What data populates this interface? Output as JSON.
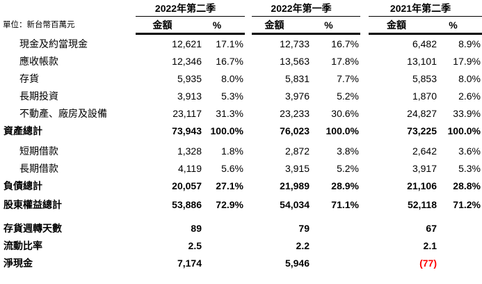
{
  "unit_note": "單位：新台幣百萬元",
  "columns": {
    "amount": "金額",
    "percent": "%"
  },
  "periods": [
    "2022年第二季",
    "2022年第一季",
    "2021年第二季"
  ],
  "colors": {
    "text": "#000000",
    "negative": "#ff0000",
    "rule": "#000000"
  },
  "rows": [
    {
      "label": "現金及約當現金",
      "bold": false,
      "gap_before": 0,
      "values": [
        "12,621",
        "17.1%",
        "12,733",
        "16.7%",
        "6,482",
        "8.9%"
      ]
    },
    {
      "label": "應收帳款",
      "bold": false,
      "gap_before": 0,
      "values": [
        "12,346",
        "16.7%",
        "13,563",
        "17.8%",
        "13,101",
        "17.9%"
      ]
    },
    {
      "label": "存貨",
      "bold": false,
      "gap_before": 0,
      "values": [
        "5,935",
        "8.0%",
        "5,831",
        "7.7%",
        "5,853",
        "8.0%"
      ]
    },
    {
      "label": "長期投資",
      "bold": false,
      "gap_before": 0,
      "values": [
        "3,913",
        "5.3%",
        "3,976",
        "5.2%",
        "1,870",
        "2.6%"
      ]
    },
    {
      "label": "不動產、廠房及設備",
      "bold": false,
      "gap_before": 0,
      "values": [
        "23,117",
        "31.3%",
        "23,233",
        "30.6%",
        "24,827",
        "33.9%"
      ]
    },
    {
      "label": "資產總計",
      "bold": true,
      "gap_before": 0,
      "values": [
        "73,943",
        "100.0%",
        "76,023",
        "100.0%",
        "73,225",
        "100.0%"
      ]
    },
    {
      "label": "短期借款",
      "bold": false,
      "gap_before": 4,
      "values": [
        "1,328",
        "1.8%",
        "2,872",
        "3.8%",
        "2,642",
        "3.6%"
      ]
    },
    {
      "label": "長期借款",
      "bold": false,
      "gap_before": 0,
      "values": [
        "4,119",
        "5.6%",
        "3,915",
        "5.2%",
        "3,917",
        "5.3%"
      ]
    },
    {
      "label": "負債總計",
      "bold": true,
      "gap_before": 0,
      "values": [
        "20,057",
        "27.1%",
        "21,989",
        "28.9%",
        "21,106",
        "28.8%"
      ]
    },
    {
      "label": "股東權益總計",
      "bold": true,
      "gap_before": 2,
      "values": [
        "53,886",
        "72.9%",
        "54,034",
        "71.1%",
        "52,118",
        "71.2%"
      ]
    },
    {
      "label": "存貨週轉天數",
      "bold": true,
      "gap_before": 9,
      "values": [
        "89",
        "",
        "79",
        "",
        "67",
        ""
      ]
    },
    {
      "label": "流動比率",
      "bold": true,
      "gap_before": 0,
      "values": [
        "2.5",
        "",
        "2.2",
        "",
        "2.1",
        ""
      ]
    },
    {
      "label": "淨現金",
      "bold": true,
      "gap_before": 0,
      "red": [
        4
      ],
      "values": [
        "7,174",
        "",
        "5,946",
        "",
        "(77)",
        ""
      ]
    }
  ]
}
